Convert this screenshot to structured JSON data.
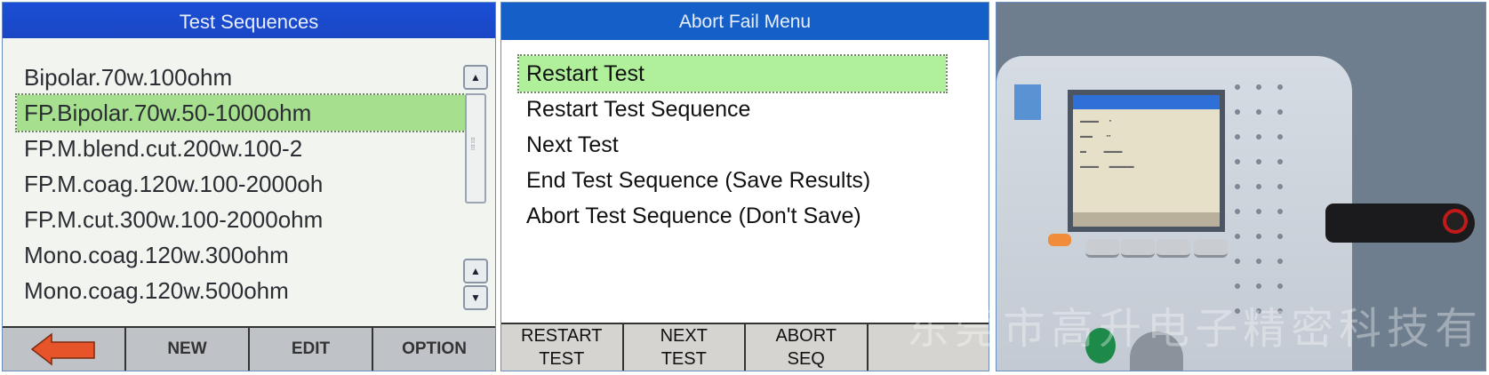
{
  "test_sequences": {
    "title": "Test Sequences",
    "items": [
      "Bipolar.70w.100ohm",
      "FP.Bipolar.70w.50-1000ohm",
      "FP.M.blend.cut.200w.100-2",
      "FP.M.coag.120w.100-2000oh",
      "FP.M.cut.300w.100-2000ohm",
      "Mono.coag.120w.300ohm",
      "Mono.coag.120w.500ohm"
    ],
    "selected_index": 1,
    "buttons": {
      "back_icon": "left-arrow-icon",
      "new": "NEW",
      "edit": "EDIT",
      "option": "OPTION"
    },
    "colors": {
      "title_bar": "#1b4fd6",
      "selection": "#a6df8e",
      "back_arrow": "#e8542a"
    }
  },
  "abort_fail_menu": {
    "title": "Abort Fail Menu",
    "items": [
      "Restart Test",
      "Restart Test Sequence",
      "Next Test",
      "End Test Sequence (Save Results)",
      "Abort Test Sequence (Don't Save)"
    ],
    "selected_index": 0,
    "buttons": [
      {
        "line1": "RESTART",
        "line2": "TEST"
      },
      {
        "line1": "NEXT",
        "line2": "TEST"
      },
      {
        "line1": "ABORT",
        "line2": "SEQ"
      },
      {
        "line1": "",
        "line2": ""
      }
    ],
    "colors": {
      "title_bar": "#1560c8",
      "selection": "#b0f09a"
    }
  },
  "photo": {
    "watermark": "东莞市高升电子精密科技有限公司"
  }
}
